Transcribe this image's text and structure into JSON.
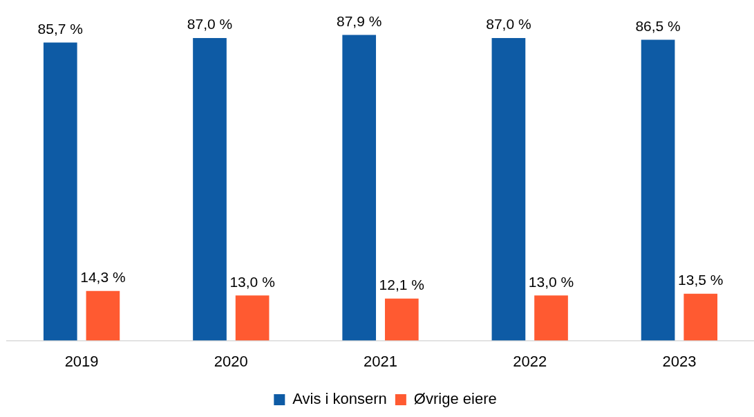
{
  "chart_data": {
    "type": "bar",
    "categories": [
      "2019",
      "2020",
      "2021",
      "2022",
      "2023"
    ],
    "series": [
      {
        "name": "Avis i konsern",
        "color": "#0e5ba5",
        "values": [
          85.7,
          87.0,
          87.9,
          87.0,
          86.5
        ],
        "value_labels": [
          "85,7 %",
          "87,0 %",
          "87,9 %",
          "87,0 %",
          "86,5 %"
        ]
      },
      {
        "name": "Øvrige eiere",
        "color": "#ff5a31",
        "values": [
          14.3,
          13.0,
          12.1,
          13.0,
          13.5
        ],
        "value_labels": [
          "14,3 %",
          "13,0 %",
          "12,1 %",
          "13,0 %",
          "13,5 %"
        ]
      }
    ],
    "tick_labels": "x",
    "legend": "bottom"
  }
}
